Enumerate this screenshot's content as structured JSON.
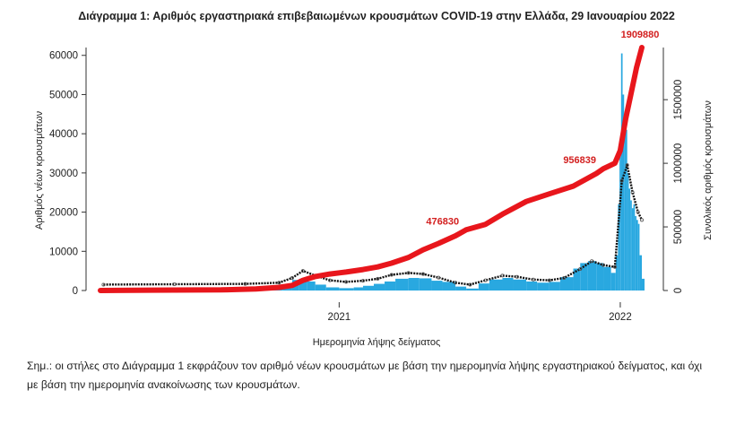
{
  "title": "Διάγραμμα 1: Αριθμός εργαστηριακά επιβεβαιωμένων κρουσμάτων COVID-19 στην Ελλάδα, 29 Ιανουαρίου 2022",
  "note_line1": "Σημ.: οι στήλες στο Διάγραμμα 1 εκφράζουν τον αριθμό νέων κρουσμάτων με βάση την ημερομηνία λήψης εργαστηριακού δείγματος, και όχι",
  "note_line2": "με βάση την ημερομηνία ανακοίνωσης των κρουσμάτων.",
  "colors": {
    "bars": "#29a8e0",
    "cumulative": "#e8161c",
    "average": "#111111"
  },
  "chart_data": {
    "type": "bar",
    "title": "Διάγραμμα 1: Αριθμός εργαστηριακά επιβεβαιωμένων κρουσμάτων COVID-19 στην Ελλάδα, 29 Ιανουαρίου 2022",
    "xlabel": "Ημερομηνία λήψης δείγματος",
    "ylabel": "Αριθμός νέων κρουσμάτων",
    "y2label": "Συνολικός αριθμός κρουσμάτων",
    "x_ticks": [
      "2021",
      "2022"
    ],
    "y_ticks": [
      0,
      10000,
      20000,
      30000,
      40000,
      50000,
      60000
    ],
    "y2_ticks": [
      0,
      500000,
      1000000,
      1500000
    ],
    "ylim": [
      0,
      62000
    ],
    "y2lim": [
      0,
      1909880
    ],
    "x_range": [
      "2020-02-26",
      "2022-01-29"
    ],
    "annotations": [
      {
        "label": "476830",
        "x": "2021-06-15",
        "value": 476830
      },
      {
        "label": "956839",
        "x": "2021-12-10",
        "value": 956839
      },
      {
        "label": "1909880",
        "x": "2022-01-29",
        "value": 1909880
      }
    ],
    "series": [
      {
        "name": "daily_new_cases",
        "kind": "bar",
        "x": [
          "2020-03-01",
          "2020-04-01",
          "2020-05-01",
          "2020-06-01",
          "2020-07-01",
          "2020-08-01",
          "2020-09-01",
          "2020-10-01",
          "2020-10-20",
          "2020-11-01",
          "2020-11-10",
          "2020-11-20",
          "2020-12-01",
          "2020-12-15",
          "2021-01-01",
          "2021-01-20",
          "2021-02-01",
          "2021-02-15",
          "2021-03-01",
          "2021-03-15",
          "2021-04-01",
          "2021-04-15",
          "2021-05-01",
          "2021-05-15",
          "2021-06-01",
          "2021-06-15",
          "2021-07-01",
          "2021-07-15",
          "2021-08-01",
          "2021-08-15",
          "2021-09-01",
          "2021-09-15",
          "2021-10-01",
          "2021-10-15",
          "2021-11-01",
          "2021-11-10",
          "2021-11-20",
          "2021-12-01",
          "2021-12-10",
          "2021-12-20",
          "2021-12-26",
          "2021-12-29",
          "2021-12-31",
          "2022-01-02",
          "2022-01-04",
          "2022-01-06",
          "2022-01-08",
          "2022-01-10",
          "2022-01-12",
          "2022-01-14",
          "2022-01-16",
          "2022-01-18",
          "2022-01-20",
          "2022-01-22",
          "2022-01-24",
          "2022-01-26",
          "2022-01-29"
        ],
        "values": [
          50,
          70,
          20,
          15,
          30,
          150,
          250,
          500,
          1500,
          2700,
          3000,
          2300,
          1500,
          800,
          600,
          800,
          1200,
          1700,
          2300,
          3000,
          3200,
          3100,
          2500,
          2200,
          1000,
          500,
          1800,
          2800,
          3200,
          2800,
          2300,
          2000,
          2200,
          3400,
          5600,
          7000,
          7500,
          7000,
          6000,
          4500,
          9000,
          22000,
          35000,
          60500,
          50000,
          42000,
          41000,
          30000,
          26000,
          23000,
          21000,
          22000,
          19000,
          18000,
          17000,
          9000,
          3000
        ]
      },
      {
        "name": "moving_average",
        "kind": "line",
        "x": [
          "2020-03-01",
          "2020-06-01",
          "2020-09-01",
          "2020-10-15",
          "2020-11-01",
          "2020-11-15",
          "2020-12-01",
          "2020-12-20",
          "2021-01-10",
          "2021-02-01",
          "2021-02-20",
          "2021-03-10",
          "2021-04-01",
          "2021-04-20",
          "2021-05-10",
          "2021-06-01",
          "2021-06-20",
          "2021-07-10",
          "2021-08-01",
          "2021-08-20",
          "2021-09-10",
          "2021-10-01",
          "2021-10-20",
          "2021-11-10",
          "2021-11-25",
          "2021-12-10",
          "2021-12-25",
          "2022-01-03",
          "2022-01-10",
          "2022-01-17",
          "2022-01-24",
          "2022-01-29"
        ],
        "values": [
          1500,
          1600,
          1700,
          2000,
          3200,
          5000,
          3800,
          2600,
          2200,
          2500,
          3000,
          4000,
          4500,
          4200,
          3300,
          2000,
          1500,
          2600,
          3800,
          3500,
          2800,
          2600,
          3200,
          5500,
          7500,
          6500,
          6000,
          28000,
          32000,
          25000,
          20000,
          18000
        ]
      },
      {
        "name": "cumulative_cases",
        "kind": "line",
        "axis": "right",
        "x": [
          "2020-02-26",
          "2020-05-01",
          "2020-08-01",
          "2020-09-15",
          "2020-10-15",
          "2020-11-01",
          "2020-11-15",
          "2020-12-01",
          "2020-12-20",
          "2021-01-10",
          "2021-02-01",
          "2021-02-20",
          "2021-03-10",
          "2021-04-01",
          "2021-04-20",
          "2021-05-10",
          "2021-06-01",
          "2021-06-15",
          "2021-07-10",
          "2021-08-01",
          "2021-09-01",
          "2021-10-01",
          "2021-11-01",
          "2021-12-01",
          "2021-12-10",
          "2021-12-25",
          "2022-01-01",
          "2022-01-08",
          "2022-01-15",
          "2022-01-22",
          "2022-01-29"
        ],
        "values": [
          0,
          3000,
          5000,
          13000,
          25000,
          40000,
          80000,
          110000,
          130000,
          145000,
          165000,
          185000,
          215000,
          260000,
          320000,
          370000,
          430000,
          476830,
          520000,
          600000,
          700000,
          760000,
          820000,
          920000,
          956839,
          1000000,
          1100000,
          1350000,
          1550000,
          1750000,
          1909880
        ]
      }
    ]
  }
}
